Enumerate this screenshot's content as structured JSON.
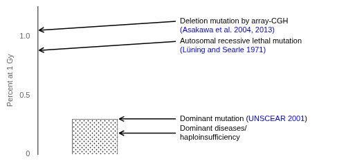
{
  "chart_data": {
    "type": "bar",
    "categories": [
      null
    ],
    "values": [
      0.3
    ],
    "color": "white",
    "ylabel": "Percent at 1 Gy",
    "ylim": [
      0,
      1.25
    ],
    "yticks": [
      0,
      0.5,
      {
        "value": 1.0,
        "label": "1.0"
      }
    ],
    "grid": false,
    "tick_labels": "y",
    "annotations": [
      {
        "y": 1.05,
        "lines": [
          [
            {
              "text": "Deletion mutation by array-CGH",
              "color": "black"
            }
          ],
          [
            {
              "text": "(Asakawa et al. 2004, 2013)",
              "color": "blue"
            }
          ]
        ]
      },
      {
        "y": 0.88,
        "lines": [
          [
            {
              "text": "Autosomal recessive lethal mutation",
              "color": "black"
            }
          ],
          [
            {
              "text": "(Lüning and Searle 1971)",
              "color": "blue"
            }
          ]
        ]
      },
      {
        "y": 0.3,
        "lines": [
          [
            {
              "text": "Dominant mutation (",
              "color": "black"
            },
            {
              "text": "UNSCEAR 2001",
              "color": "blue"
            },
            {
              "text": ")",
              "color": "black"
            }
          ]
        ]
      },
      {
        "y": 0.18,
        "lines": [
          [
            {
              "text": "Dominant diseases/",
              "color": "black"
            }
          ],
          [
            {
              "text": "haploinsufficiency",
              "color": "black"
            }
          ]
        ]
      }
    ]
  }
}
